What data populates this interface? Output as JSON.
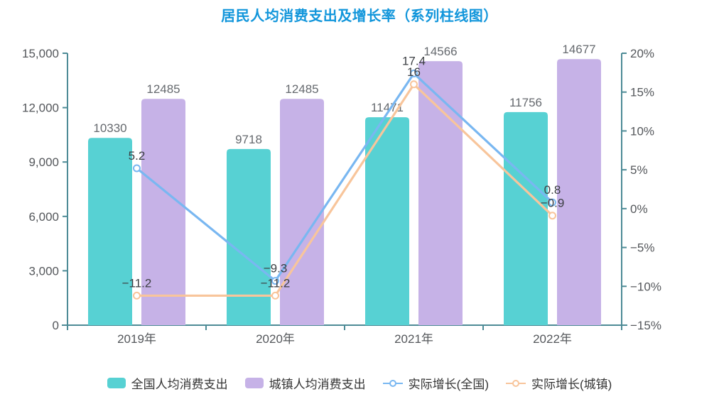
{
  "title": "居民人均消费支出及增长率（系列柱线图）",
  "title_color": "#1296db",
  "chart_data": {
    "type": "bar+line",
    "categories": [
      "2019年",
      "2020年",
      "2021年",
      "2022年"
    ],
    "series": [
      {
        "name": "全国人均消费支出",
        "type": "bar",
        "axis": "left",
        "color": "#57d1d3",
        "values": [
          10330,
          9718,
          11471,
          11756
        ]
      },
      {
        "name": "城镇人均消费支出",
        "type": "bar",
        "axis": "left",
        "color": "#c6b2e7",
        "values": [
          12485,
          12485,
          14566,
          14677
        ]
      },
      {
        "name": "实际增长(全国)",
        "type": "line",
        "axis": "right",
        "color": "#79b7f1",
        "values": [
          5.2,
          -9.3,
          17.4,
          0.8
        ]
      },
      {
        "name": "实际增长(城镇)",
        "type": "line",
        "axis": "right",
        "color": "#f8c59b",
        "values": [
          -11.2,
          -11.2,
          16,
          -0.9
        ]
      }
    ],
    "left_axis": {
      "min": 0,
      "max": 15000,
      "step": 3000,
      "tick_labels": [
        "0",
        "3,000",
        "6,000",
        "9,000",
        "12,000",
        "15,000"
      ]
    },
    "right_axis": {
      "min": -15,
      "max": 20,
      "step": 5,
      "tick_labels": [
        "−15%",
        "−10%",
        "−5%",
        "0%",
        "5%",
        "10%",
        "15%",
        "20%"
      ]
    },
    "grid": false,
    "legend_position": "bottom",
    "colors": {
      "axis_line": "#4d8b96",
      "axis_label": "#54575b",
      "bar_label": "#65696e",
      "point_label": "#3c3f43",
      "legend_label": "#333333"
    }
  }
}
